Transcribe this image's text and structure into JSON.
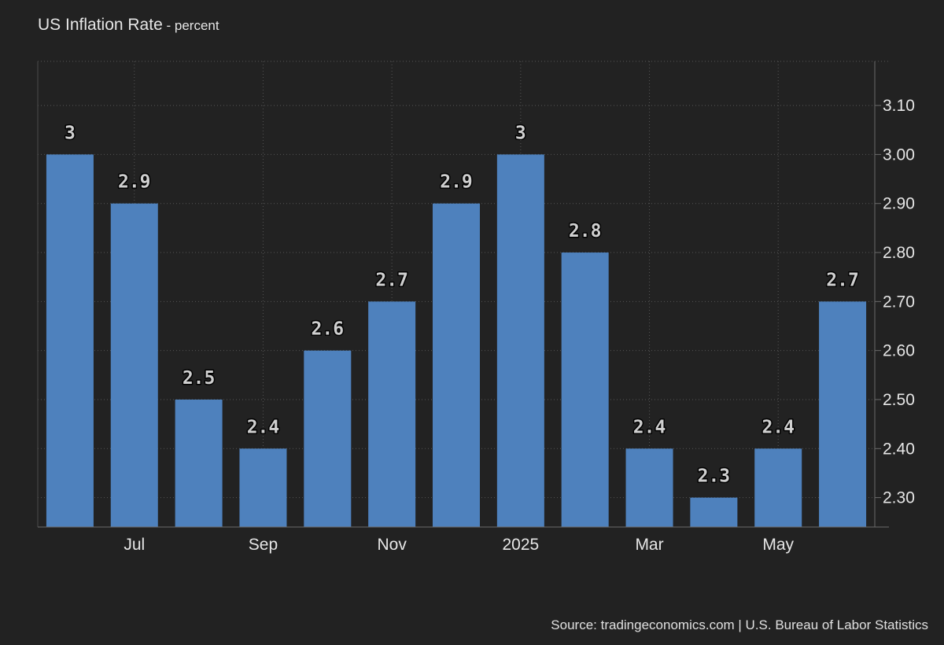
{
  "header": {
    "title": "US Inflation Rate",
    "subtitle": " - percent"
  },
  "footer": {
    "source": "Source: tradingeconomics.com | U.S. Bureau of Labor Statistics"
  },
  "colors": {
    "background": "#222222",
    "bar": "#4e81bd",
    "grid": "#555555",
    "text": "#e6e6e6",
    "label_fill": "#cfcfcf",
    "label_stroke": "#000000"
  },
  "chart_data": {
    "type": "bar",
    "title": "US Inflation Rate",
    "subtitle": "percent",
    "values": [
      3,
      2.9,
      2.5,
      2.4,
      2.6,
      2.7,
      2.9,
      3,
      2.8,
      2.4,
      2.3,
      2.4,
      2.7
    ],
    "data_labels": [
      "3",
      "2.9",
      "2.5",
      "2.4",
      "2.6",
      "2.7",
      "2.9",
      "3",
      "2.8",
      "2.4",
      "2.3",
      "2.4",
      "2.7"
    ],
    "x_tick_labels": [
      {
        "index": 1,
        "label": "Jul"
      },
      {
        "index": 3,
        "label": "Sep"
      },
      {
        "index": 5,
        "label": "Nov"
      },
      {
        "index": 7,
        "label": "2025"
      },
      {
        "index": 9,
        "label": "Mar"
      },
      {
        "index": 11,
        "label": "May"
      }
    ],
    "y_ticks": [
      2.3,
      2.4,
      2.5,
      2.6,
      2.7,
      2.8,
      2.9,
      3.0,
      3.1
    ],
    "y_tick_labels": [
      "2.30",
      "2.40",
      "2.50",
      "2.60",
      "2.70",
      "2.80",
      "2.90",
      "3.00",
      "3.10"
    ],
    "ylim": [
      2.24,
      3.19
    ],
    "y_axis_side": "right",
    "grid": true
  }
}
